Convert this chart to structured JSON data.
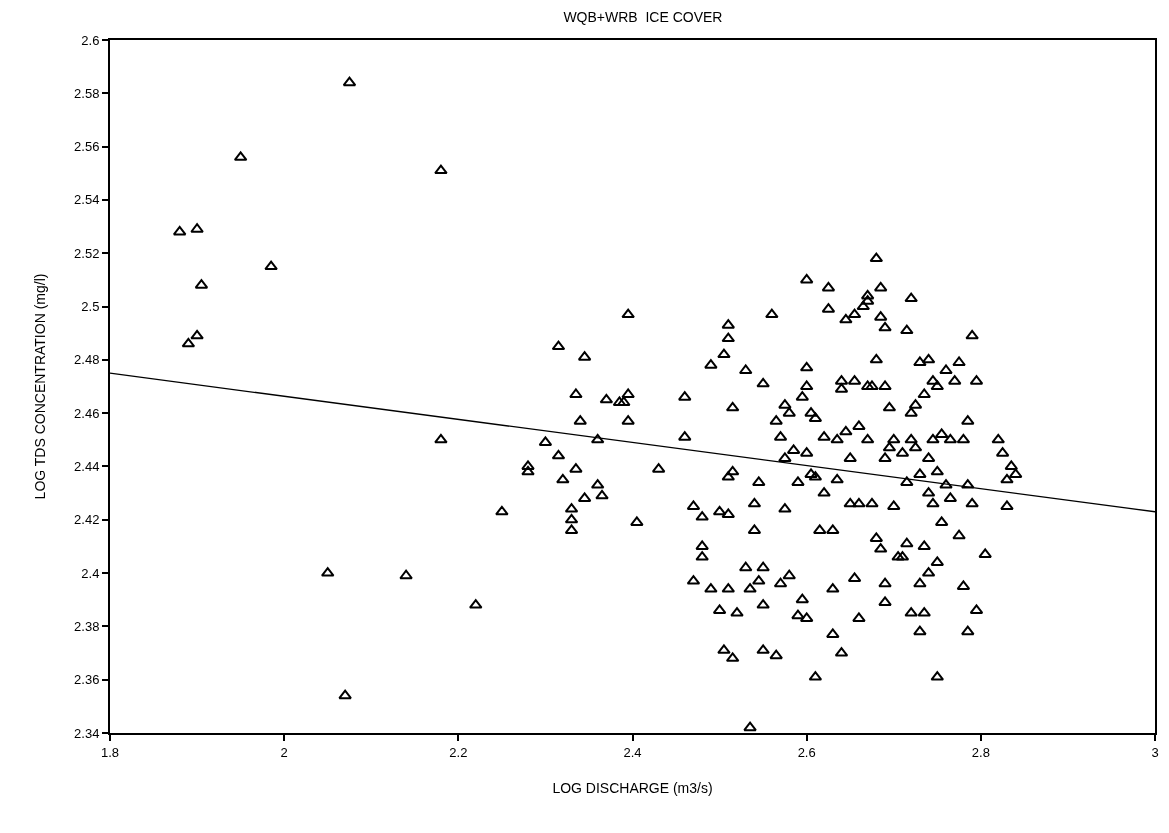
{
  "chart_data": {
    "type": "scatter",
    "title": "WQB+WRB  ICE COVER",
    "xlabel": "LOG DISCHARGE (m3/s)",
    "ylabel": "LOG TDS CONCENTRATION (mg/l)",
    "xlim": [
      1.8,
      3
    ],
    "xticks": [
      1.8,
      2,
      2.2,
      2.4,
      2.6,
      2.8,
      3
    ],
    "ylim": [
      2.34,
      2.6
    ],
    "yticks": [
      2.34,
      2.36,
      2.38,
      2.4,
      2.42,
      2.44,
      2.46,
      2.48,
      2.5,
      2.52,
      2.54,
      2.56,
      2.58,
      2.6
    ],
    "marker": "triangle",
    "series": [
      {
        "color": "#000000",
        "x": [
          1.88,
          1.9,
          1.905,
          1.89,
          1.9,
          1.95,
          1.985,
          2.075,
          2.18,
          2.18,
          2.05,
          2.14,
          2.07,
          2.22,
          2.25,
          2.28,
          2.28,
          2.3,
          2.315,
          2.315,
          2.32,
          2.33,
          2.33,
          2.33,
          2.335,
          2.335,
          2.34,
          2.345,
          2.345,
          2.36,
          2.36,
          2.365,
          2.37,
          2.385,
          2.39,
          2.395,
          2.395,
          2.395,
          2.405,
          2.43,
          2.46,
          2.46,
          2.47,
          2.48,
          2.48,
          2.48,
          2.49,
          2.49,
          2.47,
          2.5,
          2.5,
          2.505,
          2.51,
          2.51,
          2.51,
          2.51,
          2.515,
          2.505,
          2.51,
          2.515,
          2.52,
          2.515,
          2.53,
          2.53,
          2.535,
          2.535,
          2.54,
          2.54,
          2.545,
          2.545,
          2.55,
          2.55,
          2.55,
          2.55,
          2.56,
          2.565,
          2.565,
          2.57,
          2.57,
          2.575,
          2.575,
          2.575,
          2.58,
          2.58,
          2.585,
          2.59,
          2.59,
          2.595,
          2.595,
          2.6,
          2.6,
          2.6,
          2.6,
          2.6,
          2.605,
          2.605,
          2.61,
          2.61,
          2.61,
          2.615,
          2.62,
          2.62,
          2.625,
          2.625,
          2.63,
          2.63,
          2.63,
          2.635,
          2.635,
          2.64,
          2.64,
          2.64,
          2.645,
          2.645,
          2.65,
          2.65,
          2.655,
          2.655,
          2.655,
          2.66,
          2.66,
          2.66,
          2.665,
          2.67,
          2.67,
          2.67,
          2.67,
          2.675,
          2.675,
          2.68,
          2.68,
          2.68,
          2.685,
          2.685,
          2.685,
          2.69,
          2.69,
          2.69,
          2.69,
          2.69,
          2.695,
          2.695,
          2.7,
          2.7,
          2.705,
          2.71,
          2.71,
          2.715,
          2.715,
          2.715,
          2.72,
          2.72,
          2.72,
          2.72,
          2.725,
          2.725,
          2.73,
          2.73,
          2.73,
          2.73,
          2.735,
          2.735,
          2.735,
          2.74,
          2.74,
          2.74,
          2.74,
          2.745,
          2.745,
          2.745,
          2.75,
          2.75,
          2.75,
          2.75,
          2.755,
          2.755,
          2.76,
          2.76,
          2.765,
          2.765,
          2.77,
          2.775,
          2.775,
          2.78,
          2.78,
          2.785,
          2.785,
          2.785,
          2.79,
          2.79,
          2.795,
          2.795,
          2.805,
          2.82,
          2.825,
          2.83,
          2.83,
          2.835,
          2.84
        ],
        "values": [
          2.528,
          2.529,
          2.508,
          2.486,
          2.489,
          2.556,
          2.515,
          2.584,
          2.551,
          2.45,
          2.4,
          2.399,
          2.354,
          2.388,
          2.423,
          2.44,
          2.438,
          2.449,
          2.485,
          2.444,
          2.435,
          2.42,
          2.416,
          2.424,
          2.439,
          2.467,
          2.457,
          2.428,
          2.481,
          2.45,
          2.433,
          2.429,
          2.465,
          2.464,
          2.464,
          2.497,
          2.457,
          2.467,
          2.419,
          2.439,
          2.466,
          2.451,
          2.425,
          2.41,
          2.406,
          2.421,
          2.478,
          2.394,
          2.397,
          2.386,
          2.423,
          2.482,
          2.493,
          2.488,
          2.422,
          2.436,
          2.438,
          2.371,
          2.394,
          2.368,
          2.385,
          2.462,
          2.402,
          2.476,
          2.394,
          2.342,
          2.426,
          2.416,
          2.434,
          2.397,
          2.471,
          2.402,
          2.388,
          2.371,
          2.497,
          2.457,
          2.369,
          2.451,
          2.396,
          2.463,
          2.443,
          2.424,
          2.399,
          2.46,
          2.446,
          2.434,
          2.384,
          2.39,
          2.466,
          2.383,
          2.51,
          2.477,
          2.47,
          2.445,
          2.437,
          2.46,
          2.458,
          2.436,
          2.361,
          2.416,
          2.43,
          2.451,
          2.507,
          2.499,
          2.416,
          2.394,
          2.377,
          2.435,
          2.45,
          2.472,
          2.469,
          2.37,
          2.495,
          2.453,
          2.443,
          2.426,
          2.472,
          2.497,
          2.398,
          2.455,
          2.426,
          2.383,
          2.5,
          2.502,
          2.504,
          2.47,
          2.45,
          2.426,
          2.47,
          2.518,
          2.48,
          2.413,
          2.507,
          2.496,
          2.409,
          2.492,
          2.47,
          2.443,
          2.396,
          2.389,
          2.447,
          2.462,
          2.425,
          2.45,
          2.406,
          2.406,
          2.445,
          2.411,
          2.434,
          2.491,
          2.503,
          2.46,
          2.45,
          2.385,
          2.463,
          2.447,
          2.479,
          2.437,
          2.396,
          2.378,
          2.467,
          2.41,
          2.385,
          2.48,
          2.443,
          2.43,
          2.4,
          2.472,
          2.45,
          2.426,
          2.47,
          2.438,
          2.404,
          2.361,
          2.452,
          2.419,
          2.476,
          2.433,
          2.428,
          2.45,
          2.472,
          2.479,
          2.414,
          2.45,
          2.395,
          2.457,
          2.433,
          2.378,
          2.489,
          2.426,
          2.472,
          2.386,
          2.407,
          2.45,
          2.445,
          2.425,
          2.435,
          2.44,
          2.437
        ]
      },
      {
        "type": "line",
        "color": "#000000",
        "marker": "none",
        "line_style": "solid",
        "x": [
          1.8,
          3
        ],
        "values": [
          2.475,
          2.423
        ]
      }
    ]
  }
}
